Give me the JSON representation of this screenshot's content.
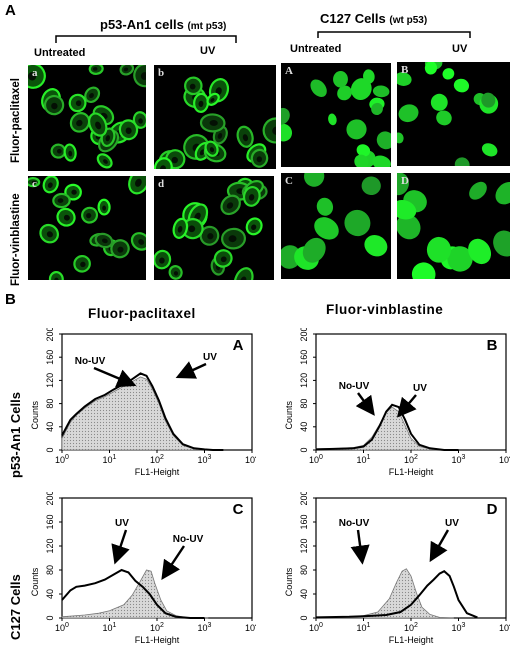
{
  "part_a": {
    "letter": "A",
    "group_left": {
      "title": "p53-An1 cells",
      "note": "(mt p53)"
    },
    "group_right": {
      "title": "C127 Cells",
      "note": "(wt p53)"
    },
    "col_labels": [
      "Untreated",
      "UV",
      "Untreated",
      "UV"
    ],
    "row_labels": [
      "Fluor-paclitaxel",
      "Fluor-vinblastine"
    ],
    "panel_tags": [
      "a",
      "b",
      "A",
      "B",
      "c",
      "d",
      "C",
      "D"
    ]
  },
  "part_b": {
    "letter": "B",
    "col_titles": [
      "Fluor-paclitaxel",
      "Fluor-vinblastine"
    ],
    "row_titles": [
      "p53-An1  Cells",
      "C127  Cells"
    ]
  },
  "chart_data": [
    {
      "type": "area",
      "panel": "A",
      "xlabel": "FL1-Height",
      "ylabel": "Counts",
      "xscale": "log",
      "xlim": [
        1,
        10000
      ],
      "ylim": [
        0,
        200
      ],
      "xticks": [
        "10⁰",
        "10¹",
        "10²",
        "10³",
        "10⁴"
      ],
      "yticks": [
        0,
        40,
        80,
        120,
        160,
        200
      ],
      "annotations": [
        "No-UV",
        "UV"
      ],
      "series": [
        {
          "name": "No-UV",
          "style": "gray filled",
          "x": [
            1,
            1.5,
            2,
            3,
            5,
            8,
            12,
            20,
            30,
            45,
            60,
            80,
            110,
            150,
            220,
            350,
            600,
            1000,
            1500,
            2500
          ],
          "y": [
            20,
            48,
            60,
            72,
            85,
            92,
            100,
            110,
            118,
            126,
            122,
            105,
            80,
            50,
            25,
            8,
            2,
            1,
            0,
            0
          ]
        },
        {
          "name": "UV",
          "style": "black line",
          "x": [
            1,
            1.5,
            2,
            3,
            5,
            8,
            12,
            20,
            30,
            45,
            60,
            80,
            110,
            150,
            220,
            350,
            600,
            1000,
            1500,
            2500
          ],
          "y": [
            25,
            52,
            62,
            75,
            88,
            95,
            104,
            114,
            122,
            132,
            128,
            110,
            85,
            55,
            28,
            10,
            3,
            1,
            0,
            0
          ]
        }
      ]
    },
    {
      "type": "area",
      "panel": "B",
      "xlabel": "FL1-Height",
      "ylabel": "Counts",
      "xscale": "log",
      "xlim": [
        1,
        10000
      ],
      "ylim": [
        0,
        200
      ],
      "xticks": [
        "10⁰",
        "10¹",
        "10²",
        "10³",
        "10⁴"
      ],
      "yticks": [
        0,
        40,
        80,
        120,
        160,
        200
      ],
      "annotations": [
        "No-UV",
        "UV"
      ],
      "series": [
        {
          "name": "No-UV",
          "style": "gray filled",
          "x": [
            1,
            3,
            6,
            10,
            15,
            22,
            30,
            40,
            55,
            75,
            100,
            150,
            250,
            500,
            1000
          ],
          "y": [
            2,
            3,
            4,
            8,
            22,
            45,
            65,
            74,
            66,
            42,
            20,
            6,
            2,
            0,
            0
          ]
        },
        {
          "name": "UV",
          "style": "black line",
          "x": [
            1,
            3,
            6,
            10,
            15,
            22,
            30,
            40,
            55,
            75,
            100,
            150,
            250,
            500,
            1000
          ],
          "y": [
            1,
            2,
            3,
            6,
            18,
            42,
            66,
            78,
            74,
            52,
            28,
            9,
            3,
            0,
            0
          ]
        }
      ]
    },
    {
      "type": "area",
      "panel": "C",
      "xlabel": "FL1-Height",
      "ylabel": "Counts",
      "xscale": "log",
      "xlim": [
        1,
        10000
      ],
      "ylim": [
        0,
        200
      ],
      "xticks": [
        "10⁰",
        "10¹",
        "10²",
        "10³",
        "10⁴"
      ],
      "yticks": [
        0,
        40,
        80,
        120,
        160,
        200
      ],
      "annotations": [
        "UV",
        "No-UV"
      ],
      "series": [
        {
          "name": "No-UV",
          "style": "gray filled",
          "x": [
            1,
            3,
            6,
            10,
            20,
            30,
            45,
            60,
            75,
            90,
            120,
            160,
            250,
            400,
            700,
            1200
          ],
          "y": [
            2,
            5,
            8,
            12,
            22,
            38,
            62,
            80,
            78,
            58,
            30,
            12,
            4,
            1,
            0,
            0
          ]
        },
        {
          "name": "UV",
          "style": "black line",
          "x": [
            1,
            1.5,
            2,
            3,
            5,
            8,
            12,
            18,
            25,
            35,
            50,
            70,
            100,
            150,
            250,
            500,
            1000
          ],
          "y": [
            30,
            46,
            52,
            54,
            58,
            64,
            72,
            80,
            76,
            62,
            52,
            40,
            22,
            8,
            2,
            0,
            0
          ]
        }
      ]
    },
    {
      "type": "area",
      "panel": "D",
      "xlabel": "FL1-Height",
      "ylabel": "Counts",
      "xscale": "log",
      "xlim": [
        1,
        10000
      ],
      "ylim": [
        0,
        200
      ],
      "xticks": [
        "10⁰",
        "10¹",
        "10²",
        "10³",
        "10⁴"
      ],
      "yticks": [
        0,
        40,
        80,
        120,
        160,
        200
      ],
      "annotations": [
        "No-UV",
        "UV"
      ],
      "series": [
        {
          "name": "No-UV",
          "style": "gray filled",
          "x": [
            1,
            5,
            10,
            20,
            35,
            50,
            65,
            80,
            100,
            130,
            170,
            250,
            400,
            800
          ],
          "y": [
            1,
            2,
            4,
            10,
            32,
            60,
            78,
            82,
            70,
            42,
            18,
            6,
            1,
            0
          ]
        },
        {
          "name": "UV",
          "style": "black line",
          "x": [
            1,
            5,
            10,
            30,
            60,
            100,
            150,
            220,
            300,
            400,
            500,
            650,
            800,
            1000,
            1500,
            2500
          ],
          "y": [
            1,
            2,
            3,
            5,
            10,
            22,
            38,
            54,
            64,
            74,
            78,
            70,
            52,
            30,
            8,
            1
          ]
        }
      ]
    }
  ]
}
